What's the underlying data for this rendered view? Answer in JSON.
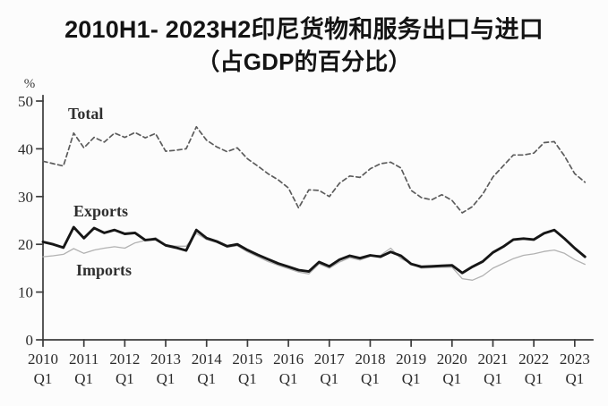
{
  "header": {
    "title_line1": "2010H1- 2023H2印尼货物和服务出口与进口",
    "title_line2": "（占GDP的百分比）"
  },
  "chart_data": {
    "type": "line",
    "title": "2010H1- 2023H2印尼货物和服务出口与进口（占GDP的百分比）",
    "ylabel_unit": "%",
    "grid": false,
    "legend_position": "inline-labels",
    "y_axis": {
      "unit": "%",
      "ticks": [
        0,
        10,
        20,
        30,
        40,
        50
      ],
      "range": [
        0,
        50
      ]
    },
    "x_axis": {
      "years": [
        "2010",
        "2011",
        "2012",
        "2013",
        "2014",
        "2015",
        "2016",
        "2017",
        "2018",
        "2019",
        "2020",
        "2021",
        "2022",
        "2023"
      ],
      "sub_label": "Q1",
      "points_per_year": 4,
      "first_point": "2010Q1",
      "last_point": "2023Q2"
    },
    "series": [
      {
        "name": "Total",
        "style": "dashed",
        "color": "#5c5c5c",
        "stroke_width": 1.7,
        "dash": "5,3.5",
        "values": [
          37.4,
          36.9,
          36.4,
          43.3,
          40.2,
          42.4,
          41.4,
          43.3,
          42.4,
          43.4,
          42.3,
          43.2,
          39.5,
          39.7,
          40.0,
          44.6,
          41.8,
          40.4,
          39.4,
          40.2,
          37.9,
          36.4,
          34.8,
          33.5,
          31.8,
          27.6,
          31.4,
          31.3,
          30.0,
          32.8,
          34.3,
          34.0,
          35.8,
          36.9,
          37.2,
          36.0,
          31.3,
          29.8,
          29.3,
          30.4,
          29.2,
          26.6,
          27.9,
          30.5,
          34.1,
          36.4,
          38.7,
          38.7,
          39.1,
          41.3,
          41.5,
          38.5,
          34.8,
          33.0
        ]
      },
      {
        "name": "Exports",
        "style": "solid-thick",
        "color": "#161616",
        "stroke_width": 2.9,
        "dash": "",
        "values": [
          20.5,
          20.0,
          19.3,
          23.6,
          21.3,
          23.4,
          22.4,
          23.0,
          22.2,
          22.4,
          20.9,
          21.1,
          19.8,
          19.3,
          18.7,
          23.0,
          21.3,
          20.6,
          19.6,
          20.0,
          18.8,
          17.8,
          16.9,
          16.0,
          15.3,
          14.6,
          14.3,
          16.3,
          15.4,
          16.8,
          17.6,
          17.1,
          17.7,
          17.4,
          18.4,
          17.6,
          15.9,
          15.3,
          15.4,
          15.5,
          15.6,
          14.0,
          15.3,
          16.4,
          18.3,
          19.5,
          21.0,
          21.2,
          21.0,
          22.3,
          23.0,
          21.2,
          19.2,
          17.4
        ]
      },
      {
        "name": "Imports",
        "style": "solid-thin",
        "color": "#b2b2b2",
        "stroke_width": 1.3,
        "dash": "",
        "values": [
          17.4,
          17.6,
          17.9,
          19.1,
          18.1,
          18.8,
          19.2,
          19.5,
          19.2,
          20.3,
          20.8,
          21.4,
          19.9,
          19.6,
          19.6,
          22.3,
          21.0,
          20.4,
          19.4,
          19.7,
          18.4,
          17.4,
          16.4,
          15.6,
          14.9,
          14.2,
          13.8,
          15.9,
          15.0,
          16.3,
          17.2,
          16.7,
          17.5,
          17.7,
          19.2,
          17.0,
          16.0,
          15.0,
          15.1,
          15.2,
          15.2,
          12.8,
          12.5,
          13.4,
          15.0,
          16.0,
          17.0,
          17.7,
          18.0,
          18.5,
          18.8,
          18.1,
          16.8,
          15.8
        ]
      }
    ]
  }
}
